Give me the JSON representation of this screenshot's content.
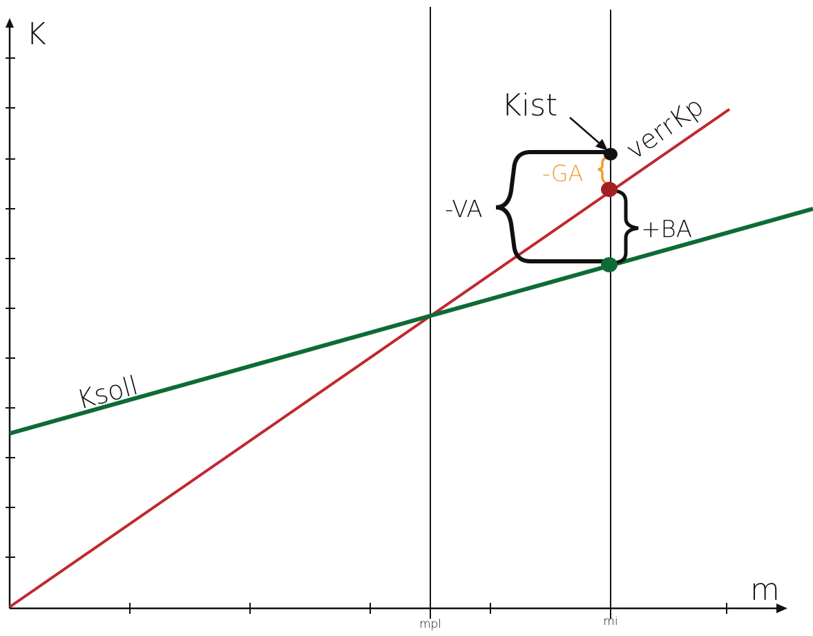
{
  "axes": {
    "y_label": "K",
    "x_label": "m",
    "x_tick_labels": {
      "mpl": "mpl",
      "mi": "mi"
    }
  },
  "lines": {
    "red": {
      "name": "verrKp",
      "color": "#c0282e"
    },
    "green": {
      "name": "Ksoll",
      "color": "#0e6b35"
    }
  },
  "labels": {
    "kist": "Kist",
    "ga": "-GA",
    "va": "-VA",
    "ba": "+BA"
  },
  "colors": {
    "axis": "#111111",
    "ga": "#f39a2c",
    "kist_point": "#111111",
    "red_point": "#a31f24",
    "green_point": "#0e6b35"
  }
}
